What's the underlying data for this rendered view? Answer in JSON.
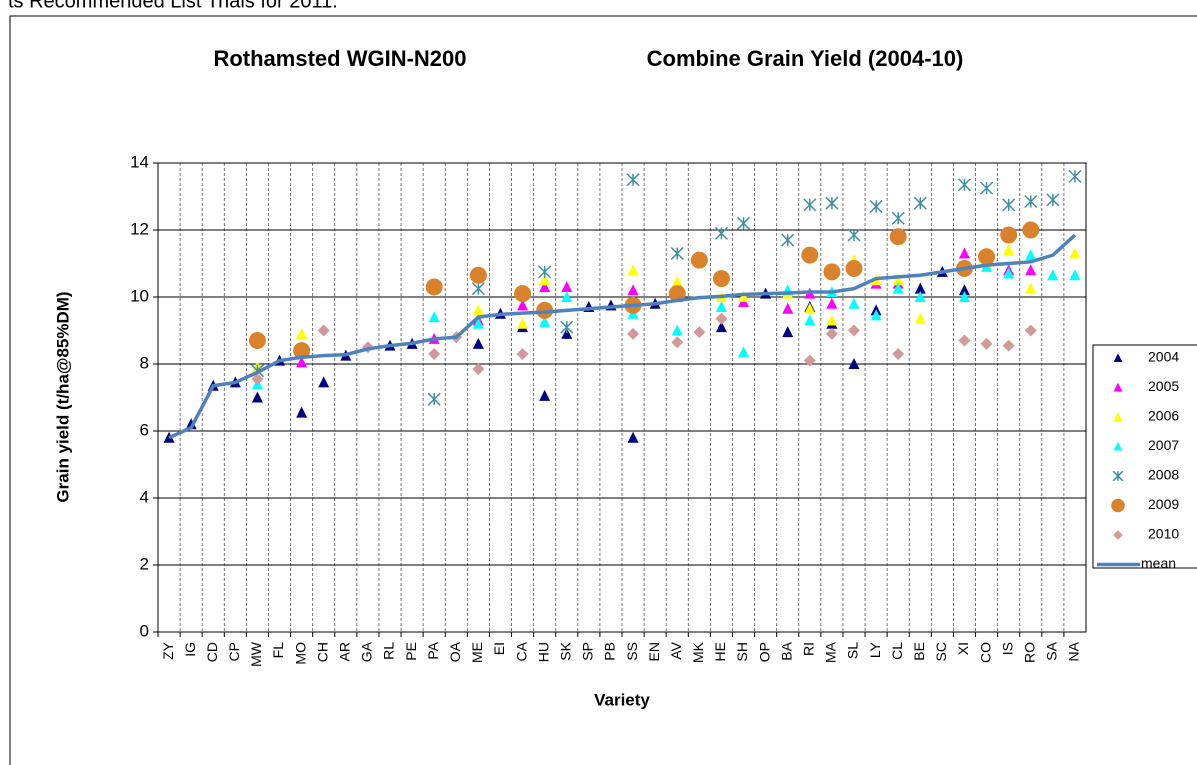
{
  "header_text": "ts Recommended List Trials for 2011.",
  "chart_data": {
    "type": "scatter",
    "title": "Rothamsted WGIN-N200",
    "subtitle": "Combine Grain Yield (2004-10)",
    "y_label": "Grain yield (t/ha@85%DM)",
    "x_label": "Variety",
    "categories": [
      "ZY",
      "IG",
      "CD",
      "CP",
      "MW",
      "FL",
      "MO",
      "CH",
      "AR",
      "GA",
      "RL",
      "PE",
      "PA",
      "OA",
      "ME",
      "EI",
      "CA",
      "HU",
      "SK",
      "SP",
      "PB",
      "SS",
      "EN",
      "AV",
      "MK",
      "HE",
      "SH",
      "OP",
      "BA",
      "RI",
      "MA",
      "SL",
      "LY",
      "CL",
      "BE",
      "SC",
      "XI",
      "CO",
      "IS",
      "RO",
      "SA",
      "NA"
    ],
    "ylim": [
      0,
      14
    ],
    "yticks": [
      0,
      2,
      4,
      6,
      8,
      10,
      12,
      14
    ],
    "grid": true,
    "series": [
      {
        "name": "2004",
        "color": "#000080",
        "marker": "triangle",
        "values": [
          5.8,
          6.2,
          7.35,
          7.45,
          7.0,
          8.1,
          6.55,
          7.45,
          8.25,
          null,
          8.55,
          8.6,
          null,
          null,
          8.6,
          9.5,
          9.1,
          7.05,
          8.9,
          9.7,
          9.75,
          5.8,
          9.8,
          10.0,
          null,
          9.1,
          null,
          10.1,
          8.95,
          9.7,
          9.2,
          8.0,
          9.6,
          null,
          10.25,
          10.75,
          10.2,
          null,
          null,
          null,
          null,
          null
        ]
      },
      {
        "name": "2005",
        "color": "#ff00ff",
        "marker": "triangle",
        "values": [
          null,
          null,
          null,
          null,
          null,
          null,
          8.05,
          null,
          null,
          null,
          null,
          null,
          8.75,
          null,
          9.3,
          null,
          9.75,
          10.3,
          10.3,
          null,
          null,
          10.2,
          null,
          10.0,
          null,
          null,
          9.85,
          null,
          9.65,
          10.1,
          9.8,
          null,
          10.4,
          10.4,
          null,
          null,
          11.3,
          null,
          10.8,
          10.8,
          null,
          null
        ]
      },
      {
        "name": "2006",
        "color": "#ffff00",
        "marker": "triangle",
        "values": [
          null,
          null,
          null,
          null,
          7.9,
          null,
          8.9,
          null,
          null,
          null,
          null,
          null,
          null,
          null,
          9.6,
          null,
          9.2,
          10.5,
          null,
          null,
          null,
          10.8,
          null,
          10.45,
          null,
          10.0,
          10.0,
          null,
          10.1,
          9.65,
          9.3,
          11.1,
          10.5,
          10.5,
          9.35,
          null,
          null,
          11.0,
          11.4,
          10.25,
          null,
          11.3
        ]
      },
      {
        "name": "2007",
        "color": "#00ffff",
        "marker": "triangle",
        "values": [
          null,
          null,
          null,
          null,
          7.4,
          null,
          null,
          null,
          null,
          null,
          null,
          null,
          9.4,
          null,
          9.2,
          null,
          null,
          9.25,
          10.0,
          null,
          null,
          9.5,
          null,
          9.0,
          null,
          9.7,
          8.35,
          null,
          10.2,
          9.3,
          10.15,
          9.8,
          9.45,
          10.25,
          10.0,
          null,
          10.0,
          10.9,
          10.7,
          11.25,
          10.65,
          10.65
        ]
      },
      {
        "name": "2008",
        "color": "#3f8f9f",
        "marker": "asterisk",
        "values": [
          null,
          null,
          null,
          null,
          7.8,
          null,
          null,
          null,
          null,
          null,
          null,
          null,
          6.95,
          null,
          10.25,
          null,
          null,
          10.75,
          9.1,
          null,
          null,
          13.5,
          null,
          11.3,
          null,
          11.9,
          12.2,
          null,
          11.7,
          12.75,
          12.8,
          11.85,
          12.7,
          12.35,
          12.8,
          null,
          13.35,
          13.25,
          12.75,
          12.85,
          12.9,
          13.6
        ]
      },
      {
        "name": "2009",
        "color": "#d9822b",
        "marker": "circle",
        "values": [
          null,
          null,
          null,
          null,
          8.7,
          null,
          8.4,
          null,
          null,
          null,
          null,
          null,
          10.3,
          null,
          10.65,
          null,
          10.1,
          9.6,
          null,
          null,
          null,
          9.75,
          null,
          10.1,
          11.1,
          10.55,
          null,
          null,
          null,
          11.25,
          10.75,
          10.85,
          null,
          11.8,
          null,
          null,
          10.85,
          11.2,
          11.85,
          12.0,
          null,
          null
        ]
      },
      {
        "name": "2010",
        "color": "#d09a9a",
        "marker": "diamond",
        "values": [
          null,
          null,
          null,
          null,
          7.55,
          null,
          null,
          9.0,
          null,
          8.5,
          null,
          null,
          8.3,
          8.8,
          7.85,
          null,
          8.3,
          null,
          null,
          null,
          null,
          8.9,
          null,
          8.65,
          8.95,
          9.35,
          null,
          null,
          null,
          8.1,
          8.9,
          9.0,
          null,
          8.3,
          null,
          null,
          8.7,
          8.6,
          8.55,
          9.0,
          null,
          null
        ]
      },
      {
        "name": "mean",
        "color": "#4f81bd",
        "marker": "line",
        "values": [
          5.8,
          6.1,
          7.35,
          7.45,
          7.75,
          8.1,
          8.2,
          8.25,
          8.28,
          8.45,
          8.55,
          8.62,
          8.75,
          8.8,
          9.4,
          9.48,
          9.52,
          9.55,
          9.6,
          9.65,
          9.7,
          9.75,
          9.8,
          9.9,
          9.98,
          10.02,
          10.08,
          10.1,
          10.12,
          10.15,
          10.15,
          10.25,
          10.55,
          10.6,
          10.65,
          10.75,
          10.85,
          10.95,
          11.0,
          11.05,
          11.25,
          11.85
        ]
      }
    ]
  }
}
